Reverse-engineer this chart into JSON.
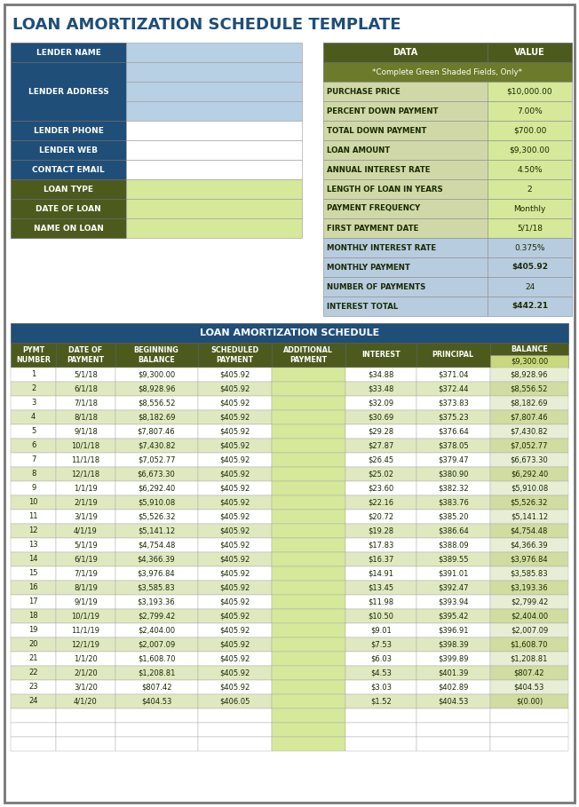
{
  "title": "LOAN AMORTIZATION SCHEDULE TEMPLATE",
  "title_color": "#1F4E79",
  "title_fontsize": 13,
  "bg_color": "#FFFFFF",
  "lender_label_bg_dark": "#1F4E79",
  "lender_label_bg_olive": "#4D5A1E",
  "lender_value_bg_light": "#B8D0E4",
  "lender_value_bg_white": "#FFFFFF",
  "lender_value_bg_green": "#D6E89A",
  "data_header": [
    "DATA",
    "VALUE"
  ],
  "data_header_bg": "#4D5A1E",
  "data_header_fg": "#FFFFFF",
  "data_subtitle": "*Complete Green Shaded Fields, Only*",
  "data_subtitle_bg": "#6B7B2A",
  "data_subtitle_fg": "#FFFFFF",
  "data_rows": [
    [
      "PURCHASE PRICE",
      "$10,000.00"
    ],
    [
      "PERCENT DOWN PAYMENT",
      "7.00%"
    ],
    [
      "TOTAL DOWN PAYMENT",
      "$700.00"
    ],
    [
      "LOAN AMOUNT",
      "$9,300.00"
    ],
    [
      "ANNUAL INTEREST RATE",
      "4.50%"
    ],
    [
      "LENGTH OF LOAN IN YEARS",
      "2"
    ],
    [
      "PAYMENT FREQUENCY",
      "Monthly"
    ],
    [
      "FIRST PAYMENT DATE",
      "5/1/18"
    ]
  ],
  "data_row_bg_label": "#D0D8A8",
  "data_row_bg_value_green": "#D6E89A",
  "data_row_bg_value_white": "#FFFFFF",
  "data_calc_rows": [
    [
      "MONTHLY INTEREST RATE",
      "0.375%",
      false
    ],
    [
      "MONTHLY PAYMENT",
      "$405.92",
      true
    ],
    [
      "NUMBER OF PAYMENTS",
      "24",
      false
    ],
    [
      "INTEREST TOTAL",
      "$442.21",
      true
    ]
  ],
  "data_calc_bg_label": "#B8CCE0",
  "data_calc_bg_value": "#B8CCE0",
  "sched_header": "LOAN AMORTIZATION SCHEDULE",
  "sched_header_bg": "#1F4E79",
  "sched_header_fg": "#FFFFFF",
  "sched_col_bg": "#4D5A1E",
  "sched_col_fg": "#FFFFFF",
  "sched_cols": [
    "PYMT\nNUMBER",
    "DATE OF\nPAYMENT",
    "BEGINNING\nBALANCE",
    "SCHEDULED\nPAYMENT",
    "ADDITIONAL\nPAYMENT",
    "INTEREST",
    "PRINCIPAL",
    "BALANCE"
  ],
  "sched_balance_init": "$9,300.00",
  "sched_balance_init_bg": "#C8D87A",
  "sched_rows": [
    [
      "1",
      "5/1/18",
      "$9,300.00",
      "$405.92",
      "",
      "$34.88",
      "$371.04",
      "$8,928.96"
    ],
    [
      "2",
      "6/1/18",
      "$8,928.96",
      "$405.92",
      "",
      "$33.48",
      "$372.44",
      "$8,556.52"
    ],
    [
      "3",
      "7/1/18",
      "$8,556.52",
      "$405.92",
      "",
      "$32.09",
      "$373.83",
      "$8,182.69"
    ],
    [
      "4",
      "8/1/18",
      "$8,182.69",
      "$405.92",
      "",
      "$30.69",
      "$375.23",
      "$7,807.46"
    ],
    [
      "5",
      "9/1/18",
      "$7,807.46",
      "$405.92",
      "",
      "$29.28",
      "$376.64",
      "$7,430.82"
    ],
    [
      "6",
      "10/1/18",
      "$7,430.82",
      "$405.92",
      "",
      "$27.87",
      "$378.05",
      "$7,052.77"
    ],
    [
      "7",
      "11/1/18",
      "$7,052.77",
      "$405.92",
      "",
      "$26.45",
      "$379.47",
      "$6,673.30"
    ],
    [
      "8",
      "12/1/18",
      "$6,673.30",
      "$405.92",
      "",
      "$25.02",
      "$380.90",
      "$6,292.40"
    ],
    [
      "9",
      "1/1/19",
      "$6,292.40",
      "$405.92",
      "",
      "$23.60",
      "$382.32",
      "$5,910.08"
    ],
    [
      "10",
      "2/1/19",
      "$5,910.08",
      "$405.92",
      "",
      "$22.16",
      "$383.76",
      "$5,526.32"
    ],
    [
      "11",
      "3/1/19",
      "$5,526.32",
      "$405.92",
      "",
      "$20.72",
      "$385.20",
      "$5,141.12"
    ],
    [
      "12",
      "4/1/19",
      "$5,141.12",
      "$405.92",
      "",
      "$19.28",
      "$386.64",
      "$4,754.48"
    ],
    [
      "13",
      "5/1/19",
      "$4,754.48",
      "$405.92",
      "",
      "$17.83",
      "$388.09",
      "$4,366.39"
    ],
    [
      "14",
      "6/1/19",
      "$4,366.39",
      "$405.92",
      "",
      "$16.37",
      "$389.55",
      "$3,976.84"
    ],
    [
      "15",
      "7/1/19",
      "$3,976.84",
      "$405.92",
      "",
      "$14.91",
      "$391.01",
      "$3,585.83"
    ],
    [
      "16",
      "8/1/19",
      "$3,585.83",
      "$405.92",
      "",
      "$13.45",
      "$392.47",
      "$3,193.36"
    ],
    [
      "17",
      "9/1/19",
      "$3,193.36",
      "$405.92",
      "",
      "$11.98",
      "$393.94",
      "$2,799.42"
    ],
    [
      "18",
      "10/1/19",
      "$2,799.42",
      "$405.92",
      "",
      "$10.50",
      "$395.42",
      "$2,404.00"
    ],
    [
      "19",
      "11/1/19",
      "$2,404.00",
      "$405.92",
      "",
      "$9.01",
      "$396.91",
      "$2,007.09"
    ],
    [
      "20",
      "12/1/19",
      "$2,007.09",
      "$405.92",
      "",
      "$7.53",
      "$398.39",
      "$1,608.70"
    ],
    [
      "21",
      "1/1/20",
      "$1,608.70",
      "$405.92",
      "",
      "$6.03",
      "$399.89",
      "$1,208.81"
    ],
    [
      "22",
      "2/1/20",
      "$1,208.81",
      "$405.92",
      "",
      "$4.53",
      "$401.39",
      "$807.42"
    ],
    [
      "23",
      "3/1/20",
      "$807.42",
      "$405.92",
      "",
      "$3.03",
      "$402.89",
      "$404.53"
    ],
    [
      "24",
      "4/1/20",
      "$404.53",
      "$406.05",
      "",
      "$1.52",
      "$404.53",
      "$(0.00)"
    ]
  ],
  "sched_row_bg_white": "#FFFFFF",
  "sched_row_bg_green": "#E0E8C0",
  "sched_additional_bg": "#D6E89A",
  "sched_balance_col_bg_white": "#E8EED5",
  "sched_balance_col_bg_green": "#D0DCA0"
}
